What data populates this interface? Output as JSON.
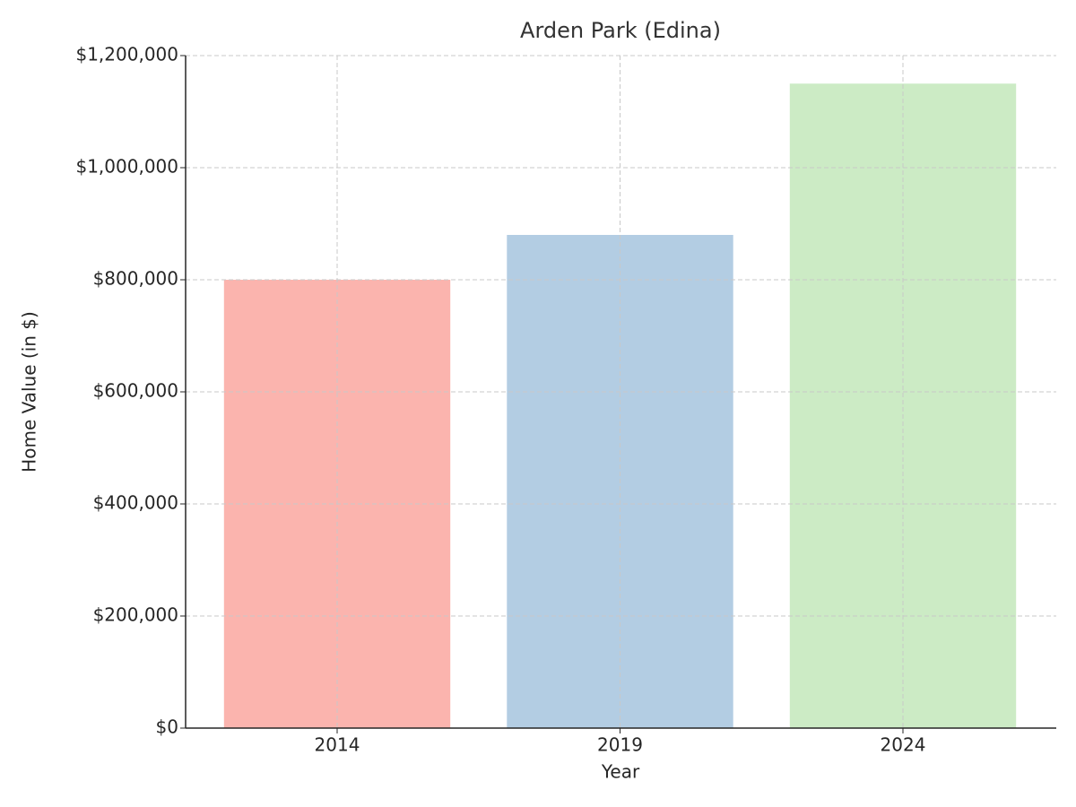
{
  "chart_data": {
    "type": "bar",
    "title": "Arden Park (Edina)",
    "x_label": "Year",
    "y_label": "Home Value (in $)",
    "categories": [
      "2014",
      "2019",
      "2024"
    ],
    "values": [
      800000,
      880000,
      1150000
    ],
    "colors": [
      "#fbb4ae",
      "#b3cde3",
      "#ccebc5"
    ],
    "ylim": [
      0,
      1200000
    ],
    "yticks": [
      {
        "value": 0,
        "label": "$0"
      },
      {
        "value": 200000,
        "label": "$200,000"
      },
      {
        "value": 400000,
        "label": "$400,000"
      },
      {
        "value": 600000,
        "label": "$600,000"
      },
      {
        "value": 800000,
        "label": "$800,000"
      },
      {
        "value": 1000000,
        "label": "$1,000,000"
      },
      {
        "value": 1200000,
        "label": "$1,200,000"
      }
    ],
    "grid": true
  }
}
